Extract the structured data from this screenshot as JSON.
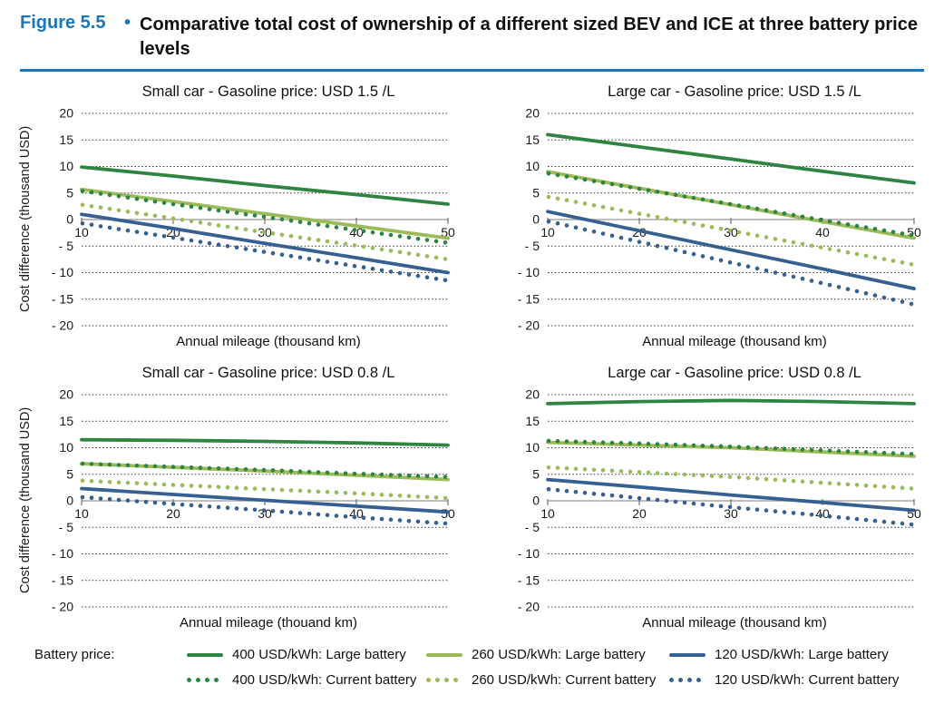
{
  "header": {
    "figure_label": "Figure 5.5",
    "bullet": "•",
    "title": "Comparative total cost of ownership of a different sized BEV and ICE at three battery price levels"
  },
  "colors": {
    "accent_blue": "#1777bd",
    "dark_green": "#2e8440",
    "light_green": "#9bbb59",
    "blue": "#366092",
    "gridline": "#333333",
    "zero_line": "#a8a8a8",
    "tick": "#595959",
    "text": "#1a1a1a"
  },
  "legend": {
    "label": "Battery price:",
    "items": [
      {
        "label": "400 USD/kWh: Large battery",
        "color": "dark_green",
        "style": "solid"
      },
      {
        "label": "260 USD/kWh: Large battery",
        "color": "light_green",
        "style": "solid"
      },
      {
        "label": "120 USD/kWh: Large battery",
        "color": "blue",
        "style": "solid"
      },
      {
        "label": "400 USD/kWh: Current battery",
        "color": "dark_green",
        "style": "dotted"
      },
      {
        "label": "260 USD/kWh: Current battery",
        "color": "light_green",
        "style": "dotted"
      },
      {
        "label": "120 USD/kWh: Current battery",
        "color": "blue",
        "style": "dotted"
      }
    ]
  },
  "chart_data": [
    {
      "type": "line",
      "title": "Small car - Gasoline price: USD 1.5 /L",
      "xlabel": "Annual mileage (thousand km)",
      "ylabel": "Cost difference (thousand USD)",
      "x": [
        10,
        20,
        30,
        40,
        50
      ],
      "xticks": [
        10,
        20,
        30,
        40,
        50
      ],
      "xlim": [
        10,
        50
      ],
      "ylim": [
        -20,
        20
      ],
      "yticks": [
        20,
        15,
        10,
        5,
        0,
        -5,
        -10,
        -15,
        -20
      ],
      "series": [
        {
          "name": "400 USD/kWh: Large battery",
          "color": "dark_green",
          "style": "solid",
          "values": [
            9.9,
            8.2,
            6.4,
            4.7,
            2.9
          ]
        },
        {
          "name": "260 USD/kWh: Large battery",
          "color": "light_green",
          "style": "solid",
          "values": [
            5.7,
            3.4,
            1.1,
            -1.2,
            -3.5
          ]
        },
        {
          "name": "120 USD/kWh: Large battery",
          "color": "blue",
          "style": "solid",
          "values": [
            1.0,
            -1.7,
            -4.5,
            -7.2,
            -10.0
          ]
        },
        {
          "name": "400 USD/kWh: Current battery",
          "color": "dark_green",
          "style": "dotted",
          "values": [
            5.4,
            2.9,
            0.5,
            -2.0,
            -4.4
          ]
        },
        {
          "name": "260 USD/kWh: Current battery",
          "color": "light_green",
          "style": "dotted",
          "values": [
            2.8,
            0.2,
            -2.4,
            -4.9,
            -7.5
          ]
        },
        {
          "name": "120 USD/kWh: Current battery",
          "color": "blue",
          "style": "dotted",
          "values": [
            -0.7,
            -3.4,
            -6.1,
            -8.8,
            -11.5
          ]
        }
      ]
    },
    {
      "type": "line",
      "title": "Large car - Gasoline price: USD 1.5 /L",
      "xlabel": "Annual mileage (thousand km)",
      "x": [
        10,
        20,
        30,
        40,
        50
      ],
      "xticks": [
        10,
        20,
        30,
        40,
        50
      ],
      "xlim": [
        10,
        50
      ],
      "ylim": [
        -20,
        20
      ],
      "yticks": [
        20,
        15,
        10,
        5,
        0,
        -5,
        -10,
        -15,
        -20
      ],
      "series": [
        {
          "name": "400 USD/kWh: Large battery",
          "color": "dark_green",
          "style": "solid",
          "values": [
            16.0,
            13.7,
            11.4,
            9.1,
            6.9
          ]
        },
        {
          "name": "260 USD/kWh: Large battery",
          "color": "light_green",
          "style": "solid",
          "values": [
            9.0,
            5.9,
            2.8,
            -0.4,
            -3.5
          ]
        },
        {
          "name": "120 USD/kWh: Large battery",
          "color": "blue",
          "style": "solid",
          "values": [
            1.5,
            -2.1,
            -5.7,
            -9.3,
            -13.0
          ]
        },
        {
          "name": "400 USD/kWh: Current battery",
          "color": "dark_green",
          "style": "dotted",
          "values": [
            8.7,
            5.8,
            2.9,
            -0.1,
            -3.0
          ]
        },
        {
          "name": "260 USD/kWh: Current battery",
          "color": "light_green",
          "style": "dotted",
          "values": [
            4.3,
            1.1,
            -2.1,
            -5.3,
            -8.5
          ]
        },
        {
          "name": "120 USD/kWh: Current battery",
          "color": "blue",
          "style": "dotted",
          "values": [
            -0.3,
            -4.2,
            -8.1,
            -12.0,
            -16.0
          ]
        }
      ]
    },
    {
      "type": "line",
      "title": "Small car - Gasoline price: USD 0.8 /L",
      "xlabel": "Annual mileage (thouand km)",
      "ylabel": "Cost difference (thousand USD)",
      "x": [
        10,
        20,
        30,
        40,
        50
      ],
      "xticks": [
        10,
        20,
        30,
        40,
        50
      ],
      "xlim": [
        10,
        50
      ],
      "ylim": [
        -20,
        20
      ],
      "yticks": [
        20,
        15,
        10,
        5,
        0,
        -5,
        -10,
        -15,
        -20
      ],
      "series": [
        {
          "name": "400 USD/kWh: Large battery",
          "color": "dark_green",
          "style": "solid",
          "values": [
            11.5,
            11.4,
            11.2,
            10.9,
            10.5
          ]
        },
        {
          "name": "260 USD/kWh: Large battery",
          "color": "light_green",
          "style": "solid",
          "values": [
            7.0,
            6.3,
            5.6,
            4.8,
            4.0
          ]
        },
        {
          "name": "120 USD/kWh: Large battery",
          "color": "blue",
          "style": "solid",
          "values": [
            2.3,
            1.2,
            0.1,
            -1.0,
            -2.1
          ]
        },
        {
          "name": "400 USD/kWh: Current battery",
          "color": "dark_green",
          "style": "dotted",
          "values": [
            7.0,
            6.4,
            5.8,
            5.1,
            4.5
          ]
        },
        {
          "name": "260 USD/kWh: Current battery",
          "color": "light_green",
          "style": "dotted",
          "values": [
            3.8,
            3.0,
            2.2,
            1.4,
            0.5
          ]
        },
        {
          "name": "120 USD/kWh: Current battery",
          "color": "blue",
          "style": "dotted",
          "values": [
            0.7,
            -0.6,
            -1.8,
            -3.1,
            -4.3
          ]
        }
      ]
    },
    {
      "type": "line",
      "title": "Large car - Gasoline price: USD 0.8 /L",
      "xlabel": "Annual mileage (thousand km)",
      "x": [
        10,
        20,
        30,
        40,
        50
      ],
      "xticks": [
        10,
        20,
        30,
        40,
        50
      ],
      "xlim": [
        10,
        50
      ],
      "ylim": [
        -20,
        20
      ],
      "yticks": [
        20,
        15,
        10,
        5,
        0,
        -5,
        -10,
        -15,
        -20
      ],
      "series": [
        {
          "name": "400 USD/kWh: Large battery",
          "color": "dark_green",
          "style": "solid",
          "values": [
            18.3,
            18.7,
            18.9,
            18.7,
            18.3
          ]
        },
        {
          "name": "260 USD/kWh: Large battery",
          "color": "light_green",
          "style": "solid",
          "values": [
            11.0,
            10.5,
            10.0,
            9.2,
            8.4
          ]
        },
        {
          "name": "120 USD/kWh: Large battery",
          "color": "blue",
          "style": "solid",
          "values": [
            4.0,
            2.6,
            1.1,
            -0.3,
            -1.8
          ]
        },
        {
          "name": "400 USD/kWh: Current battery",
          "color": "dark_green",
          "style": "dotted",
          "values": [
            11.3,
            10.8,
            10.2,
            9.5,
            8.8
          ]
        },
        {
          "name": "260 USD/kWh: Current battery",
          "color": "light_green",
          "style": "dotted",
          "values": [
            6.3,
            5.4,
            4.5,
            3.4,
            2.3
          ]
        },
        {
          "name": "120 USD/kWh: Current battery",
          "color": "blue",
          "style": "dotted",
          "values": [
            2.2,
            0.5,
            -1.2,
            -2.8,
            -4.5
          ]
        }
      ]
    }
  ]
}
